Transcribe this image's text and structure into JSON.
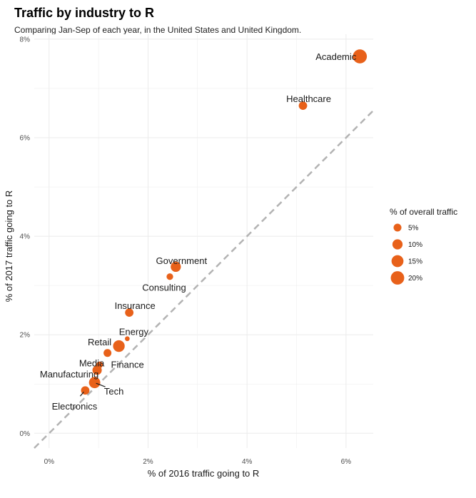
{
  "chart_data": {
    "type": "scatter",
    "title": "Traffic by industry to R",
    "subtitle": "Comparing Jan-Sep of each year, in the United States and United Kingdom.",
    "xlabel": "% of 2016 traffic going to R",
    "ylabel": "% of 2017 traffic going to R",
    "xlim": [
      -0.3,
      6.55
    ],
    "ylim": [
      -0.3,
      8.1
    ],
    "x_ticks": [
      {
        "value": 0,
        "label": "0%"
      },
      {
        "value": 2,
        "label": "2%"
      },
      {
        "value": 4,
        "label": "4%"
      },
      {
        "value": 6,
        "label": "6%"
      }
    ],
    "y_ticks": [
      {
        "value": 0,
        "label": "0%"
      },
      {
        "value": 2,
        "label": "2%"
      },
      {
        "value": 4,
        "label": "4%"
      },
      {
        "value": 6,
        "label": "6%"
      },
      {
        "value": 8,
        "label": "8%"
      }
    ],
    "reference_line": {
      "style": "dashed",
      "slope": 1,
      "intercept": 0,
      "color": "#b3b3b3"
    },
    "point_color": "#e8611a",
    "grid": true,
    "legend": {
      "title": "% of overall traffic",
      "placement": "right",
      "entries": [
        {
          "value": 5,
          "label": "5%"
        },
        {
          "value": 10,
          "label": "10%"
        },
        {
          "value": 15,
          "label": "15%"
        },
        {
          "value": 20,
          "label": "20%"
        }
      ]
    },
    "points": [
      {
        "label": "Academic",
        "x": 6.28,
        "y": 7.65,
        "size": 22
      },
      {
        "label": "Healthcare",
        "x": 5.13,
        "y": 6.65,
        "size": 6
      },
      {
        "label": "Government",
        "x": 2.56,
        "y": 3.38,
        "size": 10
      },
      {
        "label": "Consulting",
        "x": 2.44,
        "y": 3.18,
        "size": 3
      },
      {
        "label": "Insurance",
        "x": 1.62,
        "y": 2.45,
        "size": 6
      },
      {
        "label": "Energy",
        "x": 1.58,
        "y": 1.92,
        "size": 1
      },
      {
        "label": "Retail",
        "x": 1.41,
        "y": 1.77,
        "size": 14
      },
      {
        "label": "Finance",
        "x": 1.18,
        "y": 1.63,
        "size": 5
      },
      {
        "label": "Media",
        "x": 1.02,
        "y": 1.39,
        "size": 3
      },
      {
        "label": "Manufacturing",
        "x": 0.97,
        "y": 1.28,
        "size": 8
      },
      {
        "label": "Tech",
        "x": 0.92,
        "y": 1.03,
        "size": 13
      },
      {
        "label": "Electronics",
        "x": 0.73,
        "y": 0.87,
        "size": 6
      }
    ]
  }
}
